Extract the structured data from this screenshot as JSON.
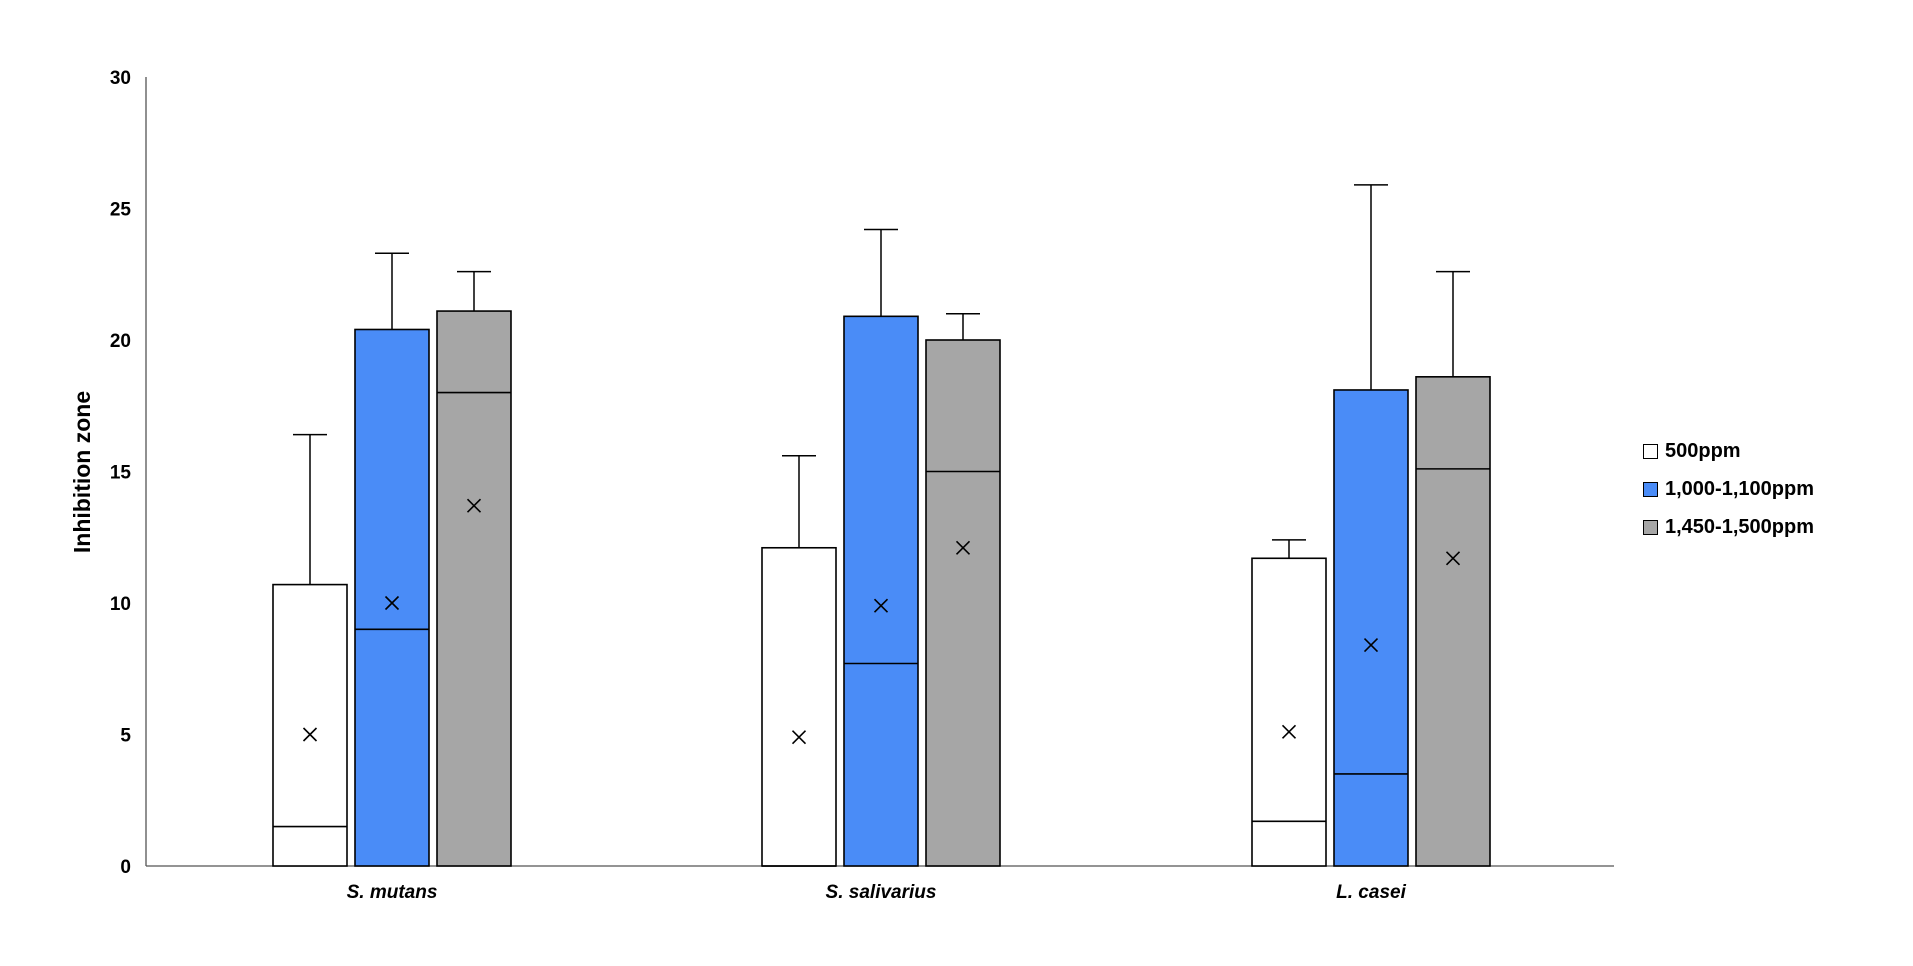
{
  "chart_data": {
    "type": "box",
    "title": "",
    "xlabel": "",
    "ylabel": "Inhibition zone",
    "ylim": [
      0,
      30
    ],
    "yticks": [
      0,
      5,
      10,
      15,
      20,
      25,
      30
    ],
    "grid": false,
    "legend_position": "right",
    "mean_marker": "×",
    "categories": [
      "S. mutans",
      "S. salivarius",
      "L. casei"
    ],
    "series": [
      {
        "name": "500ppm",
        "color": "#ffffff",
        "q1": [
          0,
          0,
          0
        ],
        "median": [
          1.5,
          0,
          1.7
        ],
        "q3": [
          10.7,
          12.1,
          11.7
        ],
        "whisker_max": [
          16.4,
          15.6,
          12.4
        ],
        "mean": [
          5.0,
          4.9,
          5.1
        ]
      },
      {
        "name": "1,000-1,100ppm",
        "color": "#4a8cf7",
        "q1": [
          0,
          0,
          0
        ],
        "median": [
          9.0,
          7.7,
          3.5
        ],
        "q3": [
          20.4,
          20.9,
          18.1
        ],
        "whisker_max": [
          23.3,
          24.2,
          25.9
        ],
        "mean": [
          10.0,
          9.9,
          8.4
        ]
      },
      {
        "name": "1,450-1,500ppm",
        "color": "#a6a6a6",
        "q1": [
          0,
          0,
          0
        ],
        "median": [
          18.0,
          15.0,
          15.1
        ],
        "q3": [
          21.1,
          20.0,
          18.6
        ],
        "whisker_max": [
          22.6,
          21.0,
          22.6
        ],
        "mean": [
          13.7,
          12.1,
          11.7
        ]
      }
    ]
  }
}
